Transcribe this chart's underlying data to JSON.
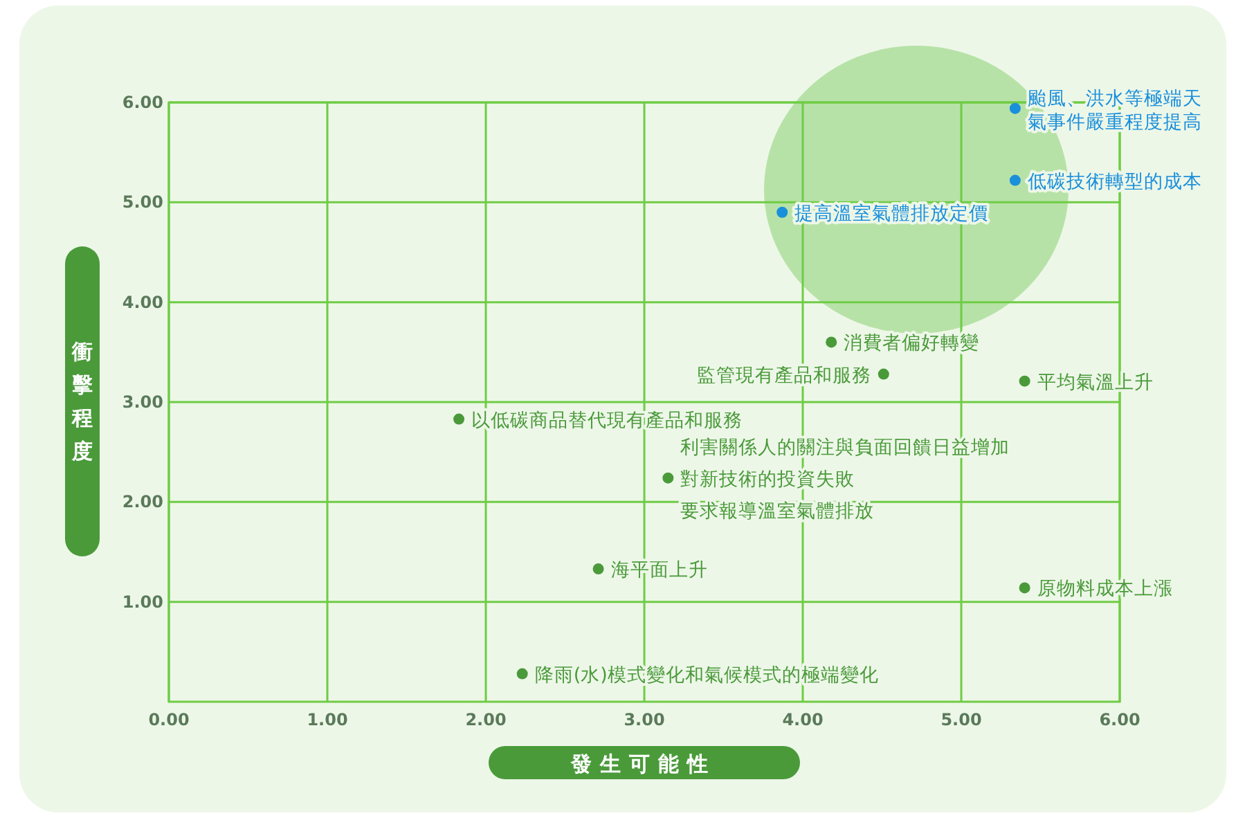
{
  "chart_data": {
    "type": "scatter",
    "xlabel": "發生可能性",
    "ylabel": "衝擊程度",
    "xlim": [
      0,
      6
    ],
    "ylim": [
      0,
      6
    ],
    "xticks": [
      {
        "value": 0,
        "label": "0.00"
      },
      {
        "value": 1,
        "label": "1.00"
      },
      {
        "value": 2,
        "label": "2.00"
      },
      {
        "value": 3,
        "label": "3.00"
      },
      {
        "value": 4,
        "label": "4.00"
      },
      {
        "value": 5,
        "label": "5.00"
      },
      {
        "value": 6,
        "label": "6.00"
      }
    ],
    "yticks": [
      {
        "value": 1,
        "label": "1.00"
      },
      {
        "value": 2,
        "label": "2.00"
      },
      {
        "value": 3,
        "label": "3.00"
      },
      {
        "value": 4,
        "label": "4.00"
      },
      {
        "value": 5,
        "label": "5.00"
      },
      {
        "value": 6,
        "label": "6.00"
      }
    ],
    "grid": true,
    "marker": "circle",
    "series": [
      {
        "color": "#1a8fdc",
        "x": [
          5.34,
          5.34,
          3.87
        ],
        "values": [
          5.94,
          5.22,
          4.9
        ]
      },
      {
        "color": "#4a9a3a",
        "x": [
          5.4,
          4.18,
          4.51,
          1.83,
          3.15,
          2.71,
          5.4,
          2.23
        ],
        "values": [
          3.21,
          3.6,
          3.28,
          2.83,
          2.24,
          1.33,
          1.14,
          0.28
        ]
      }
    ],
    "annotations": [
      {
        "text": "颱風、洪水等極端天氣事件嚴重程度提高",
        "x": 5.34,
        "y": 5.94
      },
      {
        "text": "低碳技術轉型的成本",
        "x": 5.34,
        "y": 5.22
      },
      {
        "text": "提高溫室氣體排放定價",
        "x": 3.87,
        "y": 4.9
      },
      {
        "text": "平均氣溫上升",
        "x": 5.4,
        "y": 3.21
      },
      {
        "text": "消費者偏好轉變",
        "x": 4.18,
        "y": 3.6
      },
      {
        "text": "監管現有產品和服務",
        "x": 4.51,
        "y": 3.28
      },
      {
        "text": "以低碳商品替代現有產品和服務",
        "x": 1.83,
        "y": 2.83
      },
      {
        "text": "利害關係人的關注與負面回饋日益增加",
        "x": 3.15,
        "y": 2.24
      },
      {
        "text": "對新技術的投資失敗",
        "x": 3.15,
        "y": 2.24
      },
      {
        "text": "要求報導溫室氣體排放",
        "x": 3.15,
        "y": 2.24
      },
      {
        "text": "海平面上升",
        "x": 2.71,
        "y": 1.33
      },
      {
        "text": "原物料成本上漲",
        "x": 5.4,
        "y": 1.14
      },
      {
        "text": "降雨(水)模式變化和氣候模式的極端變化",
        "x": 2.23,
        "y": 0.28
      }
    ]
  }
}
